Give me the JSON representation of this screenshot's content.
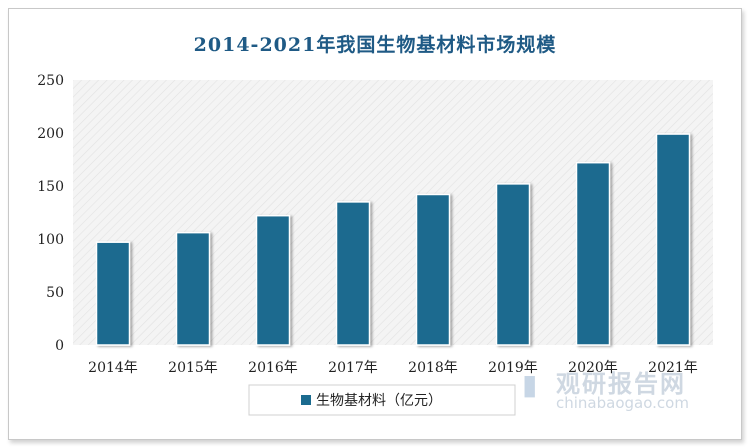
{
  "chart_data": {
    "type": "bar",
    "title": "2014-2021年我国生物基材料市场规模",
    "categories": [
      "2014年",
      "2015年",
      "2016年",
      "2017年",
      "2018年",
      "2019年",
      "2020年",
      "2021年"
    ],
    "series": [
      {
        "name": "生物基材料（亿元）",
        "values": [
          97,
          106,
          122,
          135,
          142,
          152,
          172,
          199
        ]
      }
    ],
    "ylim": [
      0,
      250
    ],
    "yticks": [
      0,
      50,
      100,
      150,
      200,
      250
    ],
    "grid": false,
    "legend_position": "bottom",
    "bar_color": "#1b6b8f",
    "plot_background": "#f1f1f1"
  },
  "watermark": {
    "cn": "观研报告网",
    "en": "chinabaogao.com",
    "icon": "bar-chart-icon"
  }
}
